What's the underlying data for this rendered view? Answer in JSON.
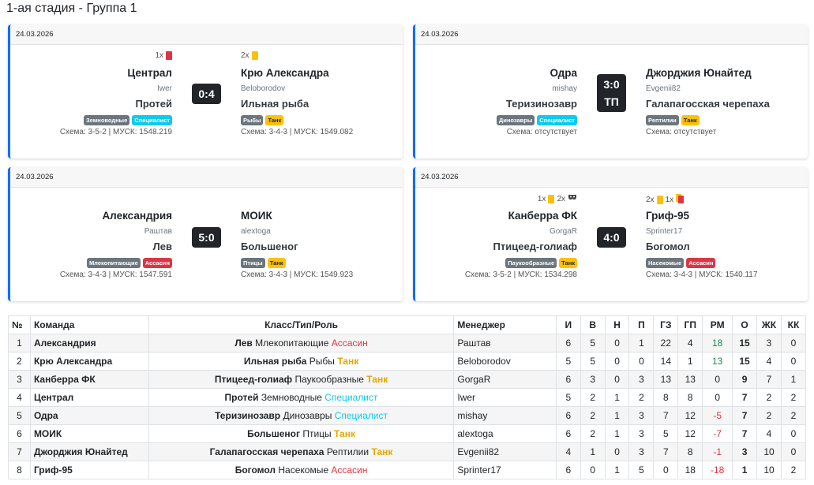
{
  "page_title": "1-ая стадия - Группа 1",
  "matches": [
    {
      "date": "24.03.2026",
      "home": {
        "cards_count": "1x",
        "cards_icon": "red-card-icon",
        "name": "Централ",
        "manager": "Iwer",
        "class": "Протей",
        "type": "Земноводные",
        "role": "Специалист",
        "scheme": "Схема: 3-5-2 | МУСК: 1548.219"
      },
      "score": "0:4",
      "score_note": "",
      "away": {
        "cards_count": "2x",
        "cards_icon": "yellow-card-icon",
        "name": "Крю Александра",
        "manager": "Beloborodov",
        "class": "Ильная рыба",
        "type": "Рыбы",
        "role": "Танк",
        "scheme": "Схема: 3-4-3 | МУСК: 1549.082"
      }
    },
    {
      "date": "24.03.2026",
      "home": {
        "name": "Одра",
        "manager": "mishay",
        "class": "Теризинозавр",
        "type": "Динозавры",
        "role": "Специалист",
        "scheme": "Схема: отсутствует"
      },
      "score": "3:0",
      "score_note": "ТП",
      "away": {
        "name": "Джорджия Юнайтед",
        "manager": "Evgenii82",
        "class": "Галапагосская черепаха",
        "type": "Рептилии",
        "role": "Танк",
        "scheme": "Схема: отсутствует"
      }
    },
    {
      "date": "24.03.2026",
      "home": {
        "name": "Александрия",
        "manager": "Раштав",
        "class": "Лев",
        "type": "Млекопитающие",
        "role": "Ассасин",
        "scheme": "Схема: 3-4-3 | МУСК: 1547.591"
      },
      "score": "5:0",
      "score_note": "",
      "away": {
        "name": "МОИК",
        "manager": "alextoga",
        "class": "Большеног",
        "type": "Птицы",
        "role": "Танк",
        "scheme": "Схема: 3-4-3 | МУСК: 1549.923"
      }
    },
    {
      "date": "24.03.2026",
      "home": {
        "cards_yellow": "1x",
        "cards_other": "2x",
        "name": "Канберра ФК",
        "manager": "GorgaR",
        "class": "Птицеед-голиаф",
        "type": "Паукообразные",
        "role": "Танк",
        "scheme": "Схема: 3-5-2 | МУСК: 1534.298"
      },
      "score": "4:0",
      "score_note": "",
      "away": {
        "cards_yellow": "2x",
        "cards_red": "1x",
        "name": "Гриф-95",
        "manager": "Sprinter17",
        "class": "Богомол",
        "type": "Насекомые",
        "role": "Ассасин",
        "scheme": "Схема: 3-4-3 | МУСК: 1540.117"
      }
    }
  ],
  "table": {
    "headers": [
      "№",
      "Команда",
      "Класс/Тип/Роль",
      "Менеджер",
      "И",
      "В",
      "Н",
      "П",
      "ГЗ",
      "ГП",
      "РМ",
      "О",
      "ЖК",
      "КК"
    ],
    "rows": [
      {
        "n": "1",
        "team": "Александрия",
        "cls": "Лев",
        "type": "Млекопитающие",
        "role": "Ассасин",
        "manager": "Раштав",
        "i": "6",
        "w": "5",
        "d": "0",
        "l": "1",
        "gf": "22",
        "ga": "4",
        "gd": "18",
        "pts": "15",
        "yc": "3",
        "rc": "0"
      },
      {
        "n": "2",
        "team": "Крю Александра",
        "cls": "Ильная рыба",
        "type": "Рыбы",
        "role": "Танк",
        "manager": "Beloborodov",
        "i": "5",
        "w": "5",
        "d": "0",
        "l": "0",
        "gf": "14",
        "ga": "1",
        "gd": "13",
        "pts": "15",
        "yc": "4",
        "rc": "0"
      },
      {
        "n": "3",
        "team": "Канберра ФК",
        "cls": "Птицеед-голиаф",
        "type": "Паукообразные",
        "role": "Танк",
        "manager": "GorgaR",
        "i": "6",
        "w": "3",
        "d": "0",
        "l": "3",
        "gf": "13",
        "ga": "13",
        "gd": "0",
        "pts": "9",
        "yc": "7",
        "rc": "1"
      },
      {
        "n": "4",
        "team": "Централ",
        "cls": "Протей",
        "type": "Земноводные",
        "role": "Специалист",
        "manager": "Iwer",
        "i": "5",
        "w": "2",
        "d": "1",
        "l": "2",
        "gf": "8",
        "ga": "8",
        "gd": "0",
        "pts": "7",
        "yc": "2",
        "rc": "2"
      },
      {
        "n": "5",
        "team": "Одра",
        "cls": "Теризинозавр",
        "type": "Динозавры",
        "role": "Специалист",
        "manager": "mishay",
        "i": "6",
        "w": "2",
        "d": "1",
        "l": "3",
        "gf": "7",
        "ga": "12",
        "gd": "-5",
        "pts": "7",
        "yc": "2",
        "rc": "2"
      },
      {
        "n": "6",
        "team": "МОИК",
        "cls": "Большеног",
        "type": "Птицы",
        "role": "Танк",
        "manager": "alextoga",
        "i": "6",
        "w": "2",
        "d": "1",
        "l": "3",
        "gf": "5",
        "ga": "12",
        "gd": "-7",
        "pts": "7",
        "yc": "4",
        "rc": "0"
      },
      {
        "n": "7",
        "team": "Джорджия Юнайтед",
        "cls": "Галапагосская черепаха",
        "type": "Рептилии",
        "role": "Танк",
        "manager": "Evgenii82",
        "i": "4",
        "w": "1",
        "d": "0",
        "l": "3",
        "gf": "7",
        "ga": "8",
        "gd": "-1",
        "pts": "3",
        "yc": "10",
        "rc": "0"
      },
      {
        "n": "8",
        "team": "Гриф-95",
        "cls": "Богомол",
        "type": "Насекомые",
        "role": "Ассасин",
        "manager": "Sprinter17",
        "i": "6",
        "w": "0",
        "d": "1",
        "l": "5",
        "gf": "0",
        "ga": "18",
        "gd": "-18",
        "pts": "1",
        "yc": "10",
        "rc": "2"
      }
    ]
  },
  "colors": {
    "accent": "#0d6efd",
    "role_assassin": "#dc3545",
    "role_specialist": "#0dcaf0",
    "role_tank": "#ffc107",
    "type_badge": "#6c757d",
    "positive": "#198754",
    "negative": "#dc3545"
  }
}
